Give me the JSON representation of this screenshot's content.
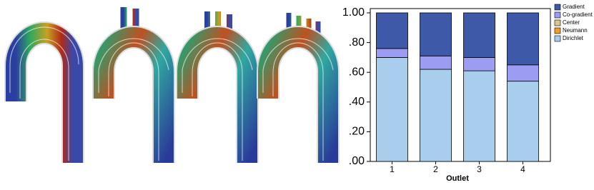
{
  "chart_data": {
    "type": "bar",
    "stacked": true,
    "xlabel": "Outlet",
    "categories": [
      "1",
      "2",
      "3",
      "4"
    ],
    "series": [
      {
        "name": "Gradient",
        "color": "#3e59a8",
        "values": [
          0.24,
          0.29,
          0.3,
          0.35
        ]
      },
      {
        "name": "Co-gradient",
        "color": "#9c9cf2",
        "values": [
          0.06,
          0.09,
          0.09,
          0.11
        ]
      },
      {
        "name": "Center",
        "color": "#d8c98a",
        "values": [
          0,
          0,
          0,
          0
        ]
      },
      {
        "name": "Neumann",
        "color": "#f0a020",
        "values": [
          0,
          0,
          0,
          0
        ]
      },
      {
        "name": "Dirichlet",
        "color": "#a9cdec",
        "values": [
          0.7,
          0.62,
          0.61,
          0.54
        ]
      }
    ],
    "ylim": [
      0,
      1
    ],
    "yticks": [
      {
        "value": 0,
        "label": ".00"
      },
      {
        "value": 0.2,
        "label": ".20"
      },
      {
        "value": 0.4,
        "label": ".40"
      },
      {
        "value": 0.6,
        "label": ".60"
      },
      {
        "value": 0.8,
        "label": ".80"
      },
      {
        "value": 1,
        "label": "1.00"
      }
    ],
    "legend": "right"
  }
}
